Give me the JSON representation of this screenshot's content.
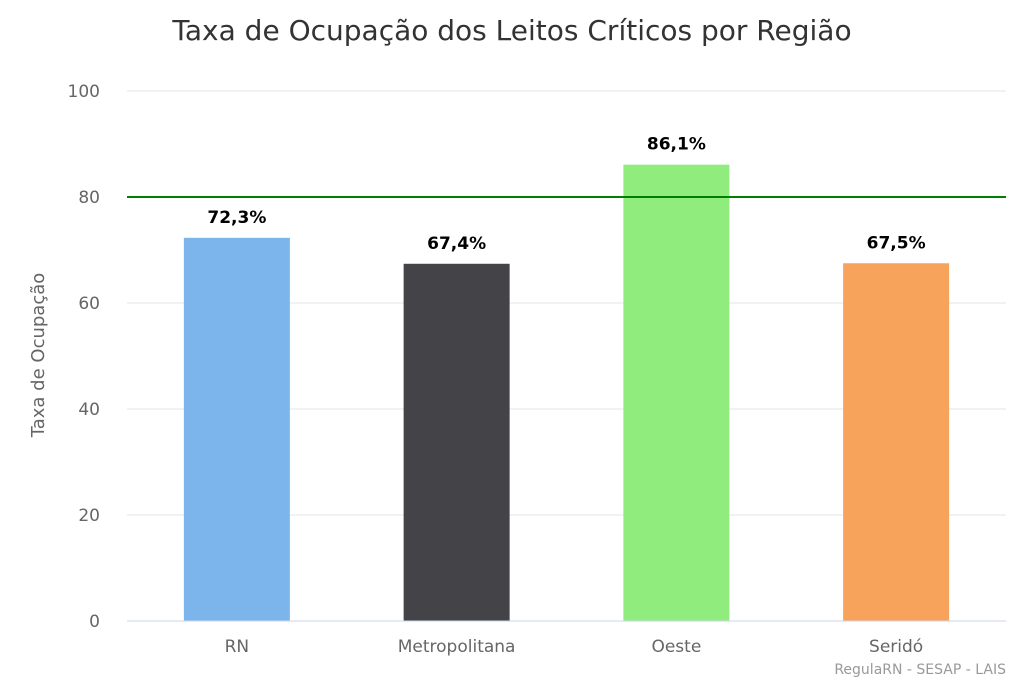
{
  "chart_data": {
    "type": "bar",
    "title": "Taxa de Ocupação dos Leitos Críticos por Região",
    "xlabel": "",
    "ylabel": "Taxa de Ocupação",
    "ylim": [
      0,
      100
    ],
    "yticks": [
      "0",
      "20",
      "40",
      "60",
      "80",
      "100"
    ],
    "categories": [
      "RN",
      "Metropolitana",
      "Oeste",
      "Seridó"
    ],
    "values": [
      72.3,
      67.4,
      86.1,
      67.5
    ],
    "data_labels": [
      "72,3%",
      "67,4%",
      "86,1%",
      "67,5%"
    ],
    "colors": [
      "#7cb5ec",
      "#434348",
      "#90ed7d",
      "#f7a35c"
    ],
    "reference_line": {
      "value": 80,
      "color": "#008000"
    },
    "grid": true,
    "legend": "none"
  },
  "credit": "RegulaRN - SESAP - LAIS"
}
